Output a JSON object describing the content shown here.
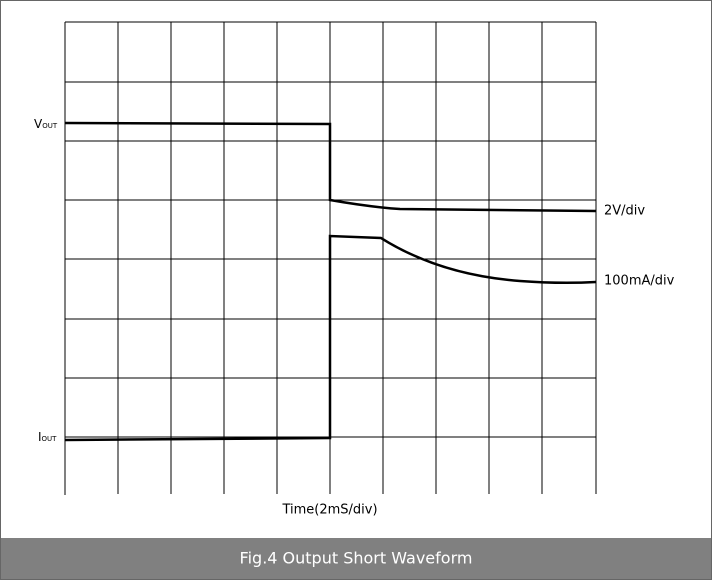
{
  "labels": {
    "vout_main": "V",
    "vout_sub": "OUT",
    "iout_main": "I",
    "iout_sub": "OUT",
    "voltage_scale": "2V/div",
    "current_scale": "100mA/div",
    "time_axis": "Time(2mS/div)"
  },
  "caption": "Fig.4 Output Short Waveform"
}
